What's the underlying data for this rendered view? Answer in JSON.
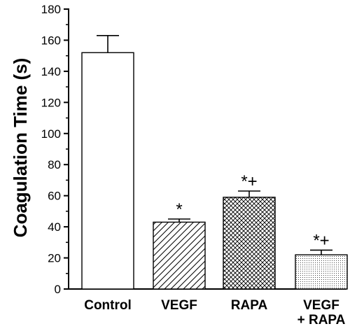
{
  "chart_data": {
    "type": "bar",
    "ylabel": "Coagulation Time (s)",
    "xlabel": "",
    "ylim": [
      0,
      180
    ],
    "yticks": [
      0,
      20,
      40,
      60,
      80,
      100,
      120,
      140,
      160,
      180
    ],
    "grid": false,
    "categories": [
      [
        "Control"
      ],
      [
        "VEGF"
      ],
      [
        "RAPA"
      ],
      [
        "VEGF",
        "+ RAPA"
      ]
    ],
    "values": [
      152,
      43,
      59,
      22
    ],
    "errors": [
      11,
      2,
      4,
      3
    ],
    "fill_patterns": [
      "none",
      "diagonal-hatch",
      "cross-hatch",
      "dots"
    ],
    "annotations": [
      "",
      "*",
      "*+",
      "*+"
    ]
  }
}
